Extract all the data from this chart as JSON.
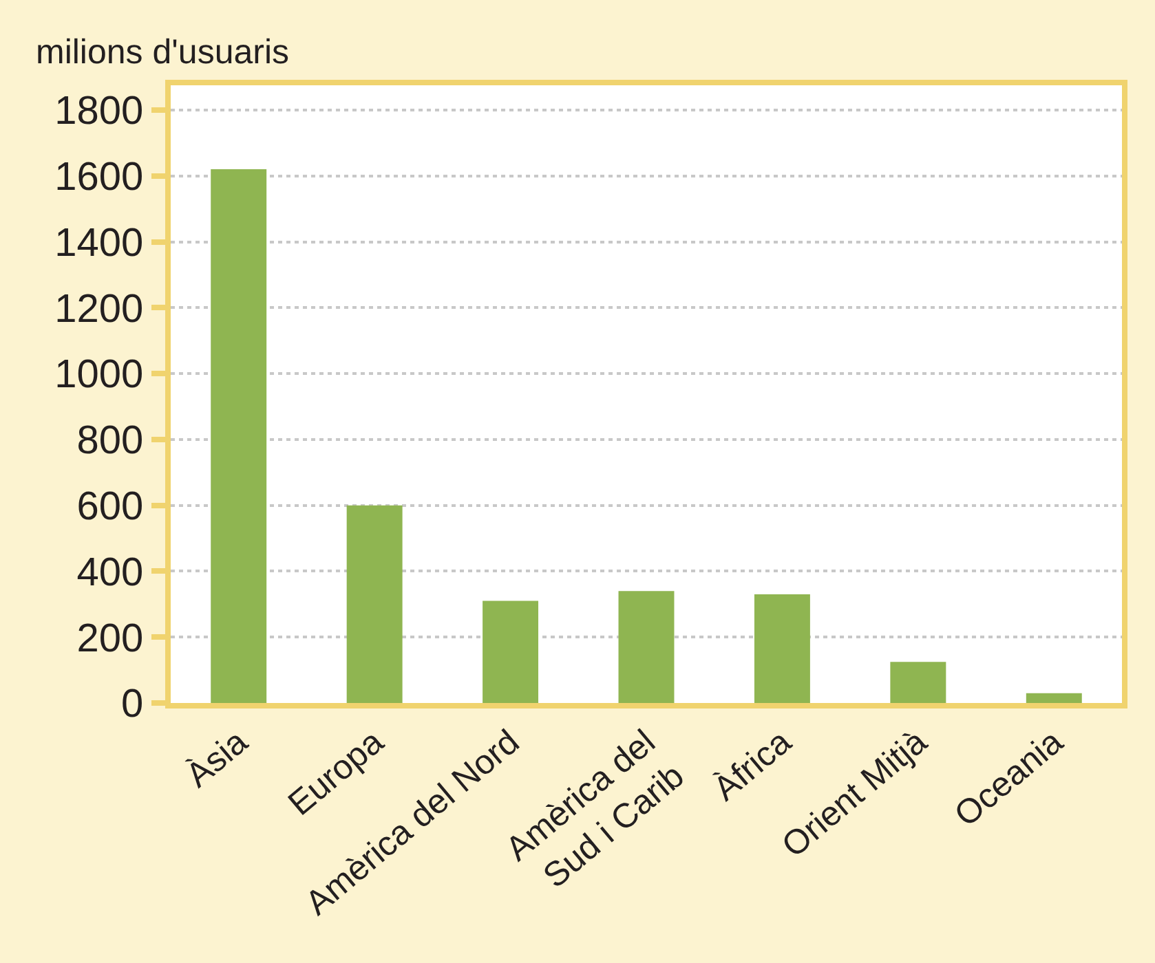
{
  "chart_data": {
    "type": "bar",
    "ylabel": "milions d'usuaris",
    "categories": [
      "Àsia",
      "Europa",
      "Amèrica del Nord",
      "Amèrica del\nSud i Carib",
      "Àfrica",
      "Orient Mitjà",
      "Oceania"
    ],
    "values": [
      1620,
      600,
      310,
      340,
      330,
      125,
      30
    ],
    "color": "#8fb551",
    "ylim": [
      0,
      1875
    ],
    "yticks": [
      0,
      200,
      400,
      600,
      800,
      1000,
      1200,
      1400,
      1600,
      1800
    ],
    "grid": "y"
  }
}
